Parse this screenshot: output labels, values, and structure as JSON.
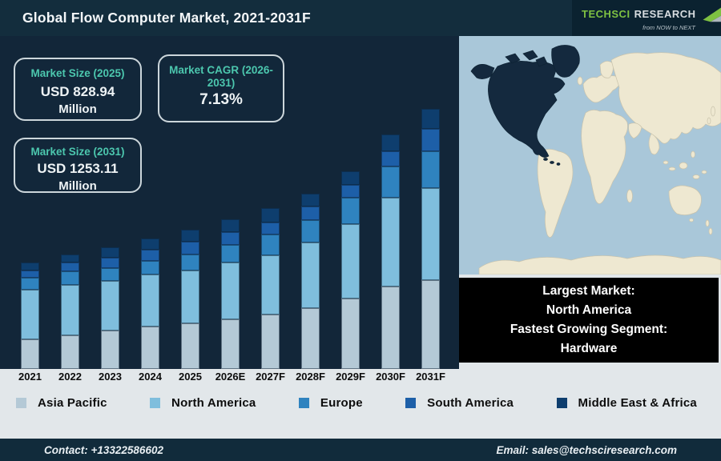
{
  "header": {
    "title": "Global Flow Computer Market, 2021-2031F",
    "logo": {
      "brand_primary": "TechSci",
      "brand_secondary": "Research",
      "tagline": "from NOW to NEXT"
    }
  },
  "stats": [
    {
      "label": "Market Size (2025)",
      "value": "USD 828.94",
      "unit": "Million"
    },
    {
      "label": "Market CAGR (2026-2031)",
      "value": "7.13%"
    },
    {
      "label": "Market Size (2031)",
      "value": "USD 1253.11",
      "unit": "Million"
    }
  ],
  "chart_data": {
    "type": "bar",
    "stacked": true,
    "title": "Global Flow Computer Market, 2021-2031F",
    "categories": [
      "2021",
      "2022",
      "2023",
      "2024",
      "2025",
      "2026E",
      "2027F",
      "2028F",
      "2029F",
      "2030F",
      "2031F"
    ],
    "series": [
      {
        "name": "Asia Pacific",
        "color": "#b4c9d6",
        "values": [
          37,
          42,
          48,
          53,
          57,
          62,
          68,
          76,
          88,
          103,
          111
        ]
      },
      {
        "name": "North America",
        "color": "#7fbedd",
        "values": [
          62,
          63,
          62,
          65,
          66,
          71,
          74,
          82,
          93,
          111,
          115
        ]
      },
      {
        "name": "Europe",
        "color": "#2f83bf",
        "values": [
          15,
          17,
          16,
          17,
          20,
          22,
          26,
          28,
          33,
          39,
          46
        ]
      },
      {
        "name": "South America",
        "color": "#1d5fa8",
        "values": [
          9,
          11,
          13,
          14,
          16,
          16,
          15,
          17,
          16,
          19,
          28
        ]
      },
      {
        "name": "Middle East & Africa",
        "color": "#0e3e6e",
        "values": [
          10,
          10,
          13,
          14,
          15,
          16,
          18,
          16,
          17,
          21,
          25
        ]
      }
    ],
    "value_axis": "none (no numeric y-axis shown; values are measured bar-segment heights in px, illustrative scale)",
    "anchor_values": {
      "market_size_2025_usd_million": 828.94,
      "market_size_2031_usd_million": 1253.11,
      "cagr_2026_2031_percent": 7.13
    },
    "legend_position": "bottom",
    "grid": false
  },
  "highlight_box": {
    "lines": [
      "Largest Market:",
      "North America",
      "Fastest Growing Segment:",
      "Hardware"
    ]
  },
  "footer": {
    "contact": "Contact: +13322586602",
    "email": "Email: sales@techsciresearch.com"
  }
}
